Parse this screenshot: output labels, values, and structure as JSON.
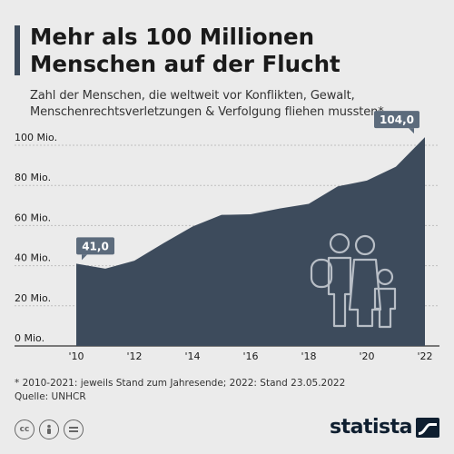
{
  "header": {
    "title_line1": "Mehr als 100 Millionen",
    "title_line2": "Menschen auf der Flucht",
    "subtitle_line1": "Zahl der Menschen, die weltweit vor Konflikten, Gewalt,",
    "subtitle_line2": "Menschenrechtsverletzungen & Verfolgung fliehen mussten*"
  },
  "chart_data": {
    "type": "area",
    "x": [
      2010,
      2011,
      2012,
      2013,
      2014,
      2015,
      2016,
      2017,
      2018,
      2019,
      2020,
      2021,
      2022
    ],
    "values": [
      41.0,
      38.5,
      42.5,
      51.2,
      59.5,
      65.3,
      65.6,
      68.5,
      70.8,
      79.5,
      82.4,
      89.3,
      104.0
    ],
    "y_ticks": [
      0,
      20,
      40,
      60,
      80,
      100
    ],
    "y_tick_labels": [
      "0 Mio.",
      "20 Mio.",
      "40 Mio.",
      "60 Mio.",
      "80 Mio.",
      "100 Mio."
    ],
    "x_ticks": [
      2010,
      2012,
      2014,
      2016,
      2018,
      2020,
      2022
    ],
    "x_tick_labels": [
      "'10",
      "'12",
      "'14",
      "'16",
      "'18",
      "'20",
      "'22"
    ],
    "ylim": [
      0,
      104
    ],
    "annotations": [
      {
        "x": 2010,
        "label": "41,0"
      },
      {
        "x": 2022,
        "label": "104,0"
      }
    ],
    "grid": true,
    "fill_color": "#3d4b5c"
  },
  "footer": {
    "note": "* 2010-2021: jeweils Stand zum Jahresende; 2022: Stand 23.05.2022",
    "source": "Quelle: UNHCR",
    "logo": "statista"
  },
  "colors": {
    "background": "#ebebeb",
    "area": "#3d4b5c",
    "grid": "#bfbfbf",
    "label_box": "#5c6b7c"
  },
  "icons": [
    "cc-icon",
    "by-icon",
    "equal-icon",
    "family-icon",
    "statista-logo-icon"
  ]
}
